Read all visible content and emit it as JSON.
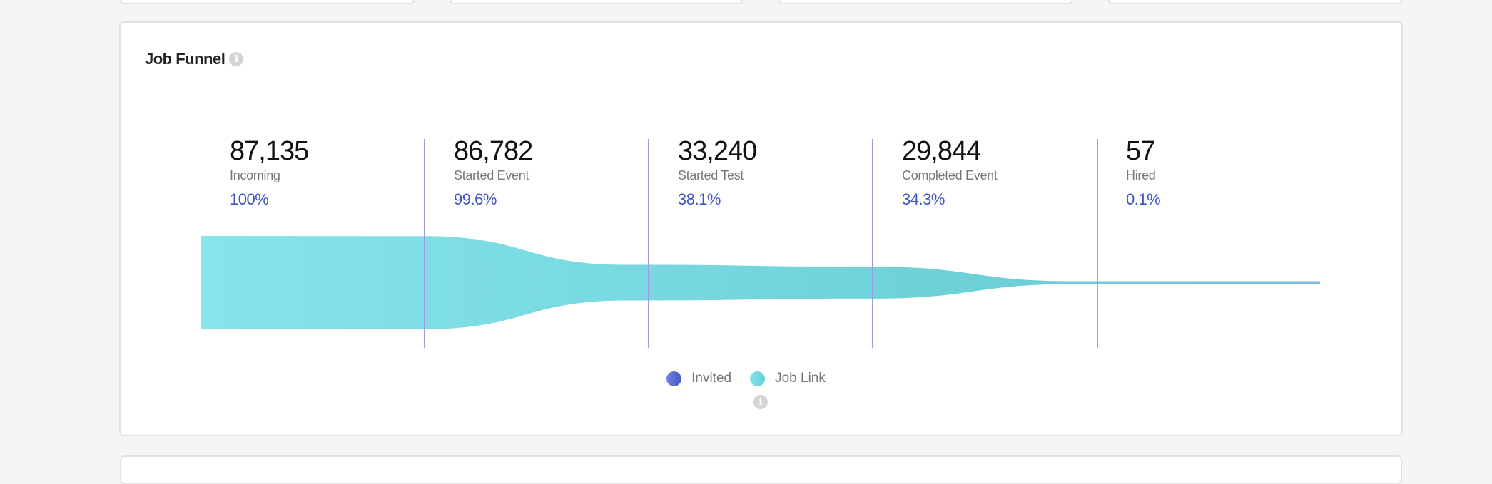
{
  "widget": {
    "title": "Job Funnel",
    "info_icon": "info-icon"
  },
  "chart_data": {
    "type": "funnel",
    "title": "Job Funnel",
    "stages": [
      {
        "value": "87,135",
        "raw": 87135,
        "label": "Incoming",
        "percent": "100%"
      },
      {
        "value": "86,782",
        "raw": 86782,
        "label": "Started Event",
        "percent": "99.6%"
      },
      {
        "value": "33,240",
        "raw": 33240,
        "label": "Started Test",
        "percent": "38.1%"
      },
      {
        "value": "29,844",
        "raw": 29844,
        "label": "Completed Event",
        "percent": "34.3%"
      },
      {
        "value": "57",
        "raw": 57,
        "label": "Hired",
        "percent": "0.1%"
      }
    ],
    "legend": [
      {
        "name": "Invited",
        "color": "#4f63cf"
      },
      {
        "name": "Job Link",
        "color": "#6fd6dc"
      }
    ],
    "legend_placement": "bottom"
  },
  "colors": {
    "accent": "#3e55c9",
    "divider": "#9c9ce0",
    "funnel_start": "#84e3ea",
    "funnel_end": "#6ccfd6"
  }
}
